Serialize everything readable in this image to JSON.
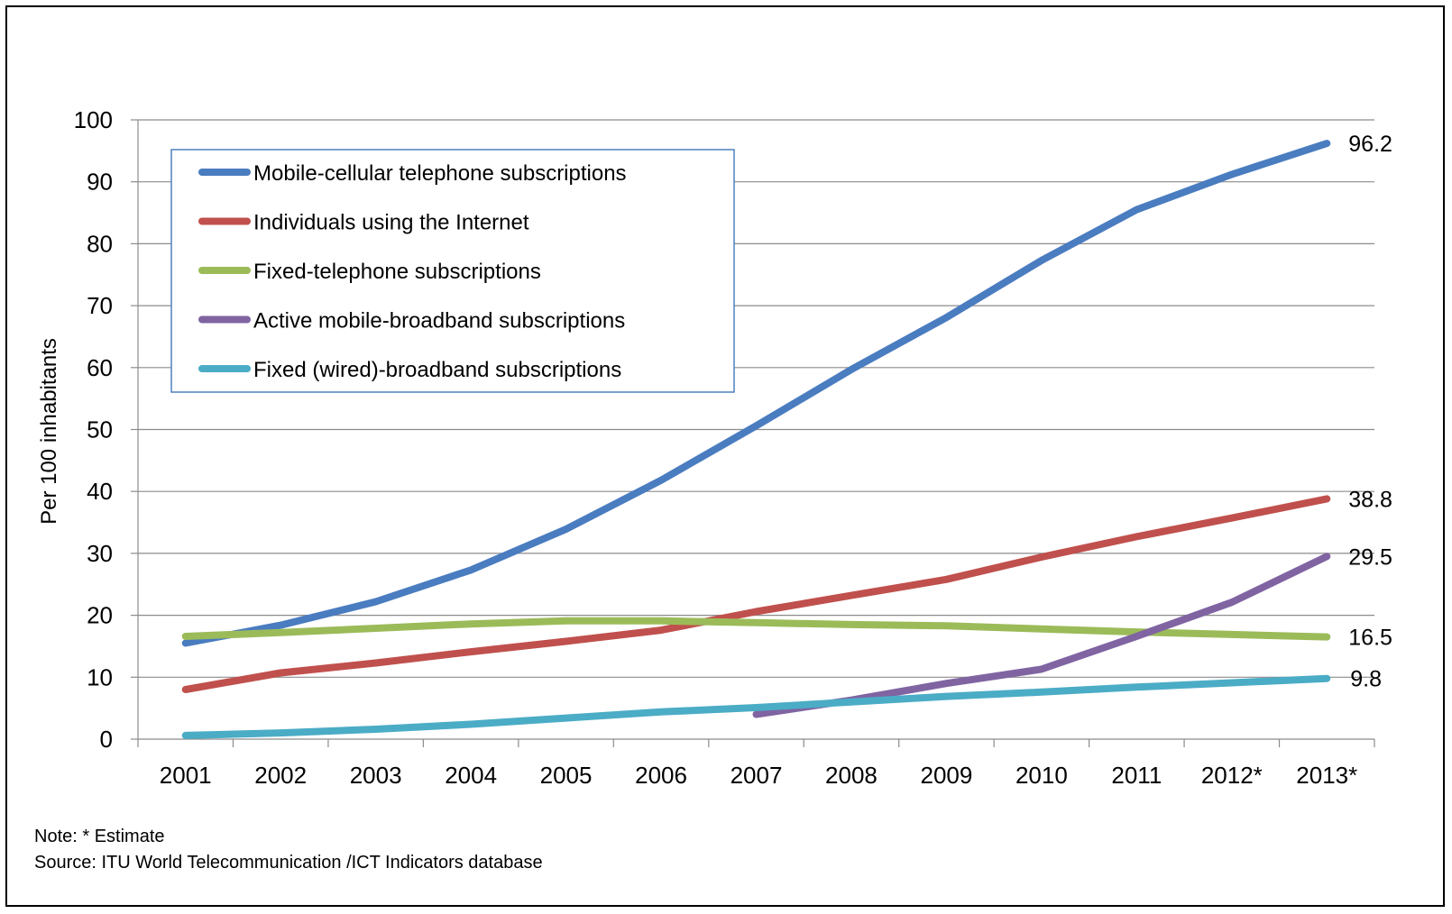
{
  "chart_data": {
    "type": "line",
    "categories": [
      "2001",
      "2002",
      "2003",
      "2004",
      "2005",
      "2006",
      "2007",
      "2008",
      "2009",
      "2010",
      "2011",
      "2012*",
      "2013*"
    ],
    "ylabel": "Per 100 inhabitants",
    "ylim": [
      0,
      100
    ],
    "yticks": [
      "0",
      "10",
      "20",
      "30",
      "40",
      "50",
      "60",
      "70",
      "80",
      "90",
      "100"
    ],
    "grid": true,
    "legend_position": "top-left",
    "series": [
      {
        "name": "Mobile-cellular telephone subscriptions",
        "color": "#4a7cc0",
        "end_label": "96.2",
        "values": [
          15.5,
          18.4,
          22.2,
          27.3,
          33.9,
          41.8,
          50.6,
          59.7,
          68.1,
          77.3,
          85.5,
          91.2,
          96.2
        ]
      },
      {
        "name": "Individuals using the Internet",
        "color": "#c0504d",
        "end_label": "38.8",
        "values": [
          8.0,
          10.7,
          12.3,
          14.1,
          15.8,
          17.6,
          20.6,
          23.2,
          25.8,
          29.4,
          32.7,
          35.7,
          38.8
        ]
      },
      {
        "name": "Fixed-telephone subscriptions",
        "color": "#9bbb59",
        "end_label": "16.5",
        "values": [
          16.6,
          17.2,
          17.9,
          18.6,
          19.1,
          19.1,
          18.8,
          18.5,
          18.3,
          17.8,
          17.3,
          16.9,
          16.5
        ]
      },
      {
        "name": "Active mobile-broadband subscriptions",
        "color": "#8064a2",
        "end_label": "29.5",
        "values": [
          null,
          null,
          null,
          null,
          null,
          null,
          4.0,
          6.3,
          9.0,
          11.3,
          16.6,
          22.1,
          29.5
        ]
      },
      {
        "name": "Fixed (wired)-broadband subscriptions",
        "color": "#4bacc6",
        "end_label": "9.8",
        "values": [
          0.6,
          1.0,
          1.6,
          2.4,
          3.4,
          4.4,
          5.1,
          6.0,
          6.9,
          7.6,
          8.4,
          9.1,
          9.8
        ]
      }
    ]
  },
  "note": "Note: * Estimate",
  "source": "Source:  ITU World Telecommunication  /ICT Indicators database"
}
